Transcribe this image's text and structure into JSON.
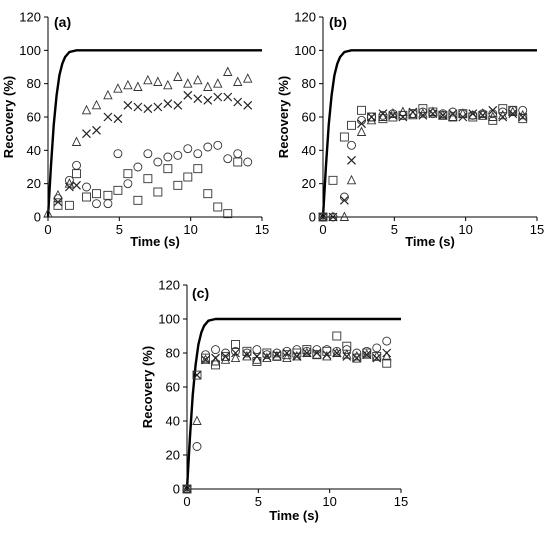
{
  "chart_data": [
    {
      "type": "scatter",
      "panel_label": "(a)",
      "xlabel": "Time (s)",
      "ylabel": "Recovery (%)",
      "xlim": [
        0,
        15
      ],
      "ylim": [
        0,
        120
      ],
      "x_ticks": [
        "0",
        "5",
        "10",
        "15"
      ],
      "y_ticks": [
        "0",
        "20",
        "40",
        "60",
        "80",
        "100",
        "120"
      ],
      "line": {
        "x": [
          0,
          0.2,
          0.4,
          0.6,
          0.8,
          1.0,
          1.2,
          1.5,
          2.0,
          3.0,
          15
        ],
        "y": [
          0,
          30,
          55,
          73,
          85,
          92,
          96,
          99,
          100,
          100,
          100
        ]
      },
      "series": [
        {
          "marker": "triangle",
          "x": [
            0,
            0.7,
            1.5,
            2.0,
            2.7,
            3.4,
            4.2,
            4.9,
            5.6,
            6.3,
            7.0,
            7.7,
            8.4,
            9.1,
            9.8,
            10.5,
            11.2,
            11.9,
            12.6,
            13.3,
            14.0
          ],
          "y": [
            2,
            13,
            20,
            45,
            64,
            67,
            73,
            77,
            79,
            78,
            82,
            81,
            79,
            84,
            80,
            82,
            78,
            80,
            87,
            81,
            83
          ]
        },
        {
          "marker": "x",
          "x": [
            0.7,
            1.5,
            2.0,
            2.7,
            3.4,
            4.2,
            4.9,
            5.6,
            6.3,
            7.0,
            7.7,
            8.4,
            9.1,
            9.8,
            10.5,
            11.2,
            11.9,
            12.6,
            13.3,
            14.0
          ],
          "y": [
            9,
            18,
            19,
            50,
            52,
            60,
            59,
            67,
            66,
            65,
            66,
            68,
            67,
            73,
            71,
            70,
            72,
            72,
            69,
            67
          ]
        },
        {
          "marker": "circle",
          "x": [
            0.7,
            1.5,
            2.0,
            2.7,
            3.4,
            4.2,
            4.9,
            5.6,
            6.3,
            7.0,
            7.7,
            8.4,
            9.1,
            9.8,
            10.5,
            11.2,
            11.9,
            12.6,
            13.3,
            14.0
          ],
          "y": [
            11,
            22,
            31,
            18,
            8,
            8,
            38,
            20,
            30,
            38,
            33,
            36,
            37,
            41,
            38,
            42,
            43,
            35,
            38,
            33
          ]
        },
        {
          "marker": "square",
          "x": [
            0.7,
            1.5,
            2.0,
            2.7,
            3.4,
            4.2,
            4.9,
            5.6,
            6.3,
            7.0,
            7.7,
            8.4,
            9.1,
            9.8,
            10.5,
            11.2,
            11.9,
            12.6,
            13.3
          ],
          "y": [
            7,
            7,
            26,
            12,
            14,
            13,
            16,
            26,
            10,
            23,
            15,
            29,
            19,
            24,
            29,
            14,
            6,
            2,
            33
          ]
        }
      ]
    },
    {
      "type": "scatter",
      "panel_label": "(b)",
      "xlabel": "Time (s)",
      "ylabel": "Recovery (%)",
      "xlim": [
        0,
        15
      ],
      "ylim": [
        0,
        120
      ],
      "x_ticks": [
        "0",
        "5",
        "10",
        "15"
      ],
      "y_ticks": [
        "0",
        "20",
        "40",
        "60",
        "80",
        "100",
        "120"
      ],
      "line": {
        "x": [
          0,
          0.2,
          0.4,
          0.6,
          0.8,
          1.0,
          1.2,
          1.5,
          2.0,
          3.0,
          15
        ],
        "y": [
          0,
          30,
          55,
          73,
          85,
          92,
          96,
          99,
          100,
          100,
          100
        ]
      },
      "series": [
        {
          "marker": "triangle",
          "x": [
            0,
            0.7,
            1.5,
            2.0,
            2.7,
            3.4,
            4.2,
            4.9,
            5.6,
            6.3,
            7.0,
            7.7,
            8.4,
            9.1,
            9.8,
            10.5,
            11.2,
            11.9,
            12.6,
            13.3,
            14.0
          ],
          "y": [
            0,
            0,
            0,
            22,
            51,
            58,
            60,
            62,
            63,
            61,
            62,
            63,
            61,
            60,
            62,
            61,
            62,
            60,
            61,
            63,
            61
          ]
        },
        {
          "marker": "x",
          "x": [
            0,
            0.7,
            1.5,
            2.0,
            2.7,
            3.4,
            4.2,
            4.9,
            5.6,
            6.3,
            7.0,
            7.7,
            8.4,
            9.1,
            9.8,
            10.5,
            11.2,
            11.9,
            12.6,
            13.3,
            14.0
          ],
          "y": [
            0,
            0,
            10,
            34,
            56,
            60,
            62,
            61,
            60,
            63,
            61,
            62,
            61,
            62,
            60,
            62,
            61,
            64,
            60,
            62,
            60
          ]
        },
        {
          "marker": "circle",
          "x": [
            0,
            0.7,
            1.5,
            2.0,
            2.7,
            3.4,
            4.2,
            4.9,
            5.6,
            6.3,
            7.0,
            7.7,
            8.4,
            9.1,
            9.8,
            10.5,
            11.2,
            11.9,
            12.6,
            13.3,
            14.0
          ],
          "y": [
            0,
            0,
            12,
            43,
            58,
            60,
            61,
            62,
            61,
            62,
            63,
            62,
            62,
            63,
            62,
            61,
            62,
            62,
            63,
            64,
            64
          ]
        },
        {
          "marker": "square",
          "x": [
            0,
            0.7,
            1.5,
            2.0,
            2.7,
            3.4,
            4.2,
            4.9,
            5.6,
            6.3,
            7.0,
            7.7,
            8.4,
            9.1,
            9.8,
            10.5,
            11.2,
            11.9,
            12.6,
            13.3,
            14.0
          ],
          "y": [
            0,
            22,
            48,
            55,
            64,
            60,
            59,
            60,
            61,
            62,
            65,
            63,
            61,
            60,
            62,
            60,
            61,
            58,
            65,
            64,
            59
          ]
        }
      ]
    },
    {
      "type": "scatter",
      "panel_label": "(c)",
      "xlabel": "Time (s)",
      "ylabel": "Recovery (%)",
      "xlim": [
        0,
        15
      ],
      "ylim": [
        0,
        120
      ],
      "x_ticks": [
        "0",
        "5",
        "10",
        "15"
      ],
      "y_ticks": [
        "0",
        "20",
        "40",
        "60",
        "80",
        "100",
        "120"
      ],
      "line": {
        "x": [
          0,
          0.2,
          0.4,
          0.6,
          0.8,
          1.0,
          1.2,
          1.5,
          2.0,
          3.0,
          15
        ],
        "y": [
          0,
          30,
          55,
          73,
          85,
          92,
          96,
          99,
          100,
          100,
          100
        ]
      },
      "series": [
        {
          "marker": "triangle",
          "x": [
            0,
            0.7,
            1.3,
            2.0,
            2.7,
            3.4,
            4.2,
            4.9,
            5.6,
            6.3,
            7.0,
            7.7,
            8.4,
            9.1,
            9.8,
            10.5,
            11.2,
            11.9,
            12.6,
            13.3,
            14.0
          ],
          "y": [
            0,
            40,
            76,
            75,
            76,
            77,
            78,
            76,
            77,
            78,
            77,
            78,
            80,
            79,
            78,
            80,
            79,
            78,
            79,
            78,
            78
          ]
        },
        {
          "marker": "x",
          "x": [
            0,
            0.7,
            1.3,
            2.0,
            2.7,
            3.4,
            4.2,
            4.9,
            5.6,
            6.3,
            7.0,
            7.7,
            8.4,
            9.1,
            9.8,
            10.5,
            11.2,
            11.9,
            12.6,
            13.3,
            14.0
          ],
          "y": [
            0,
            67,
            76,
            77,
            78,
            80,
            79,
            78,
            78,
            79,
            80,
            78,
            80,
            80,
            79,
            80,
            78,
            77,
            79,
            77,
            80
          ]
        },
        {
          "marker": "circle",
          "x": [
            0,
            0.7,
            1.3,
            2.0,
            2.7,
            3.4,
            4.2,
            4.9,
            5.6,
            6.3,
            7.0,
            7.7,
            8.4,
            9.1,
            9.8,
            10.5,
            11.2,
            11.9,
            12.6,
            13.3,
            14.0
          ],
          "y": [
            0,
            25,
            79,
            82,
            80,
            81,
            80,
            82,
            79,
            80,
            81,
            82,
            81,
            82,
            82,
            81,
            82,
            80,
            81,
            83,
            87
          ]
        },
        {
          "marker": "square",
          "x": [
            0,
            0.7,
            1.3,
            2.0,
            2.7,
            3.4,
            4.2,
            4.9,
            5.6,
            6.3,
            7.0,
            7.7,
            8.4,
            9.1,
            9.8,
            10.5,
            11.2,
            11.9,
            12.6,
            13.3,
            14.0
          ],
          "y": [
            0,
            67,
            77,
            73,
            78,
            85,
            81,
            75,
            80,
            78,
            79,
            80,
            82,
            79,
            81,
            90,
            84,
            77,
            80,
            78,
            74
          ]
        }
      ]
    }
  ]
}
